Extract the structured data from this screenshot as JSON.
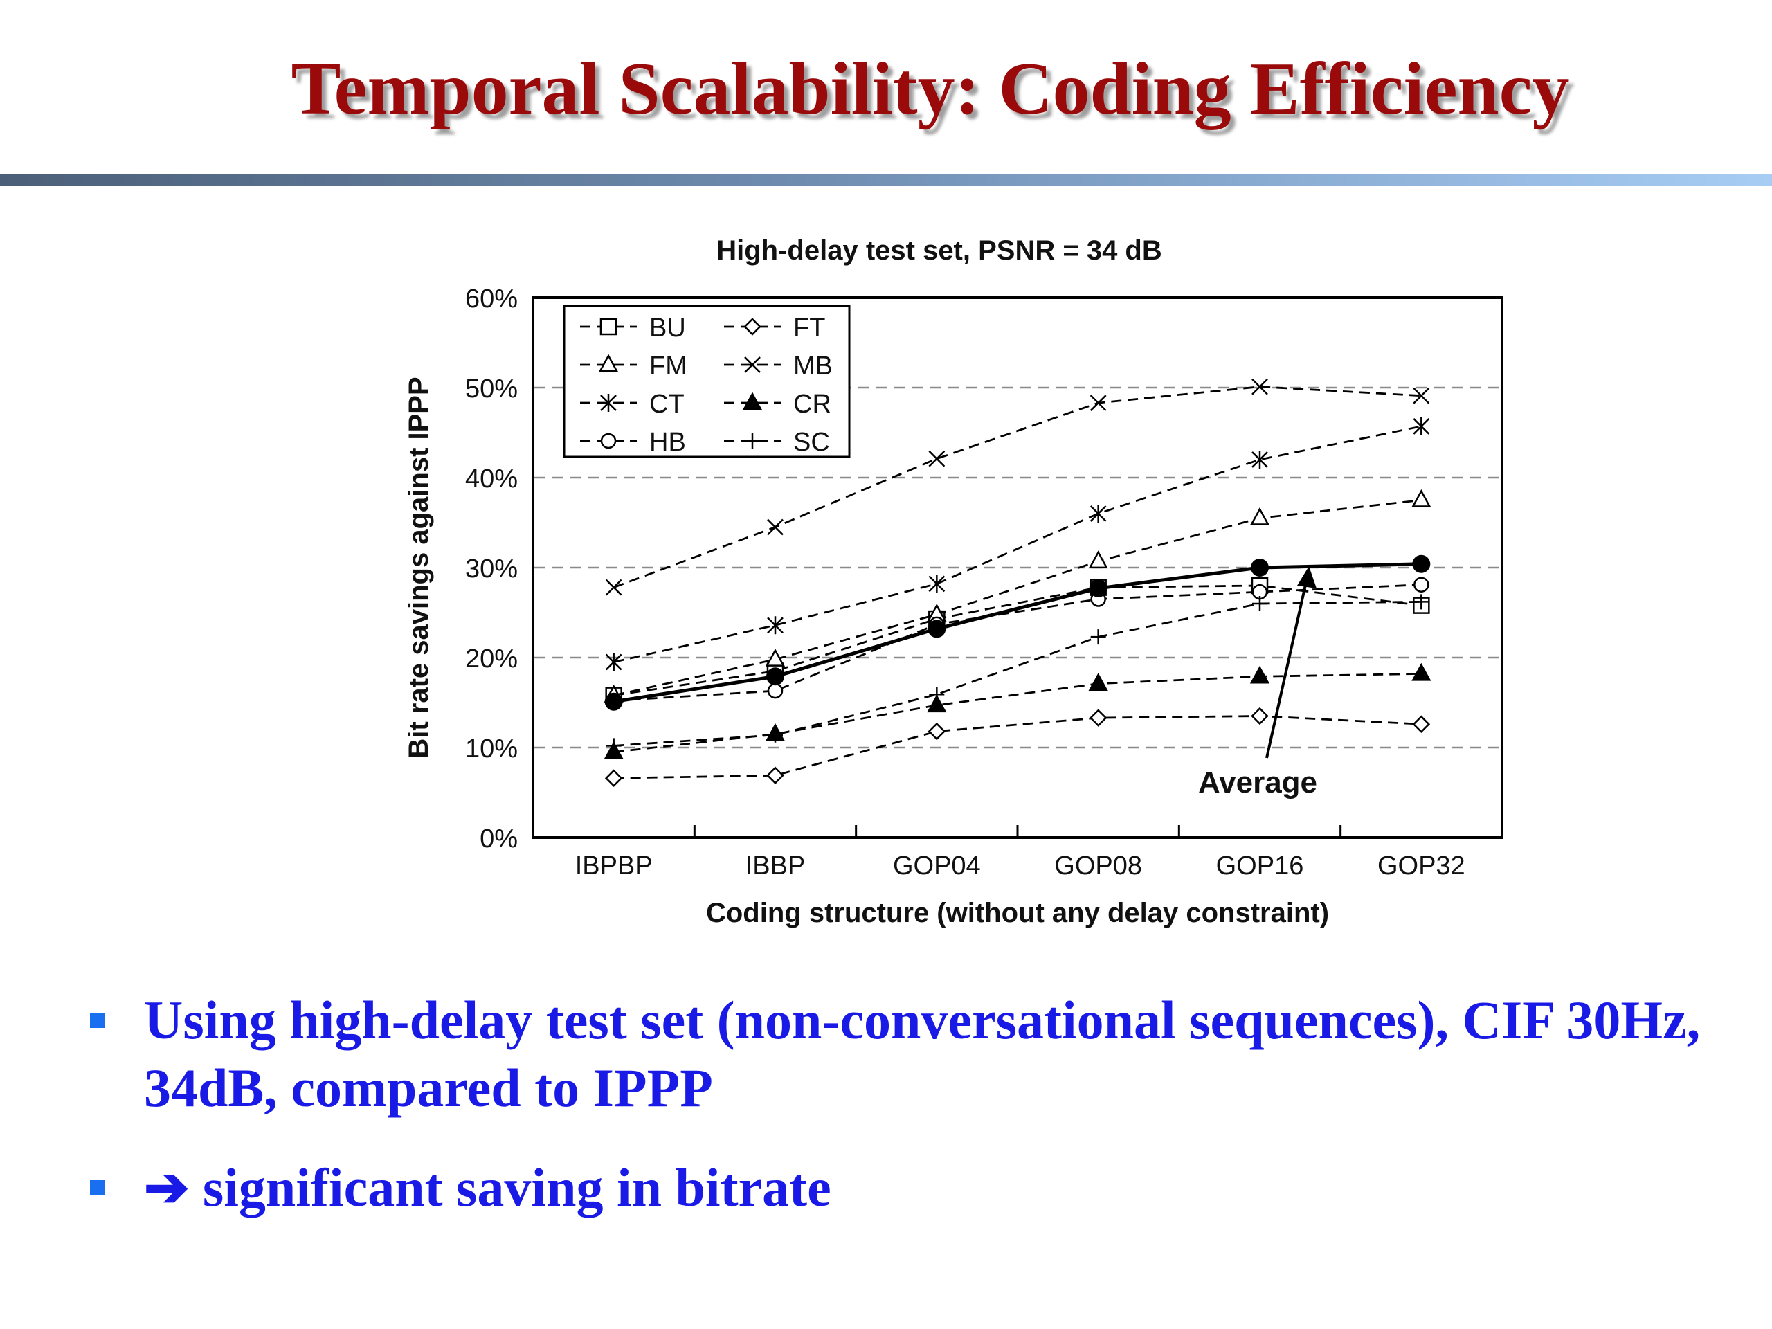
{
  "slide": {
    "title": "Temporal Scalability: Coding Efficiency",
    "bullets": [
      {
        "text": "Using high-delay test set (non-conversational sequences), CIF 30Hz, 34dB, compared to IPPP"
      },
      {
        "arrow": "➔",
        "text": "significant saving in bitrate"
      }
    ]
  },
  "chart_data": {
    "type": "line",
    "title": "High-delay test set, PSNR = 34 dB",
    "xlabel": "Coding structure (without any delay constraint)",
    "ylabel": "Bit rate savings against IPPP",
    "categories": [
      "IBPBP",
      "IBBP",
      "GOP04",
      "GOP08",
      "GOP16",
      "GOP32"
    ],
    "ylim": [
      0,
      60
    ],
    "yticks": [
      "0%",
      "10%",
      "20%",
      "30%",
      "40%",
      "50%",
      "60%"
    ],
    "grid": "horizontal dashed",
    "legend_position": "top-left",
    "series": [
      {
        "name": "BU",
        "marker": "open-square",
        "values": [
          15.8,
          18.5,
          24.3,
          27.8,
          28.0,
          25.8
        ]
      },
      {
        "name": "FM",
        "marker": "open-triangle",
        "values": [
          15.8,
          19.8,
          24.8,
          30.7,
          35.5,
          37.5
        ]
      },
      {
        "name": "CT",
        "marker": "asterisk",
        "values": [
          19.5,
          23.6,
          28.2,
          36.0,
          42.0,
          45.7
        ]
      },
      {
        "name": "HB",
        "marker": "open-circle",
        "values": [
          15.2,
          16.3,
          23.7,
          26.5,
          27.3,
          28.1
        ]
      },
      {
        "name": "FT",
        "marker": "open-diamond",
        "values": [
          6.6,
          6.9,
          11.8,
          13.3,
          13.5,
          12.6
        ]
      },
      {
        "name": "MB",
        "marker": "x",
        "values": [
          27.8,
          34.5,
          42.1,
          48.3,
          50.1,
          49.1
        ]
      },
      {
        "name": "CR",
        "marker": "filled-triangle",
        "values": [
          9.5,
          11.5,
          14.7,
          17.1,
          17.9,
          18.2
        ]
      },
      {
        "name": "SC",
        "marker": "plus",
        "values": [
          10.2,
          11.4,
          15.9,
          22.3,
          26.0,
          26.2
        ]
      },
      {
        "name": "Average",
        "marker": "filled-circle",
        "values": [
          15.1,
          17.9,
          23.2,
          27.7,
          30.0,
          30.4
        ]
      }
    ],
    "annotation": {
      "text": "Average",
      "points_to": "GOP16–GOP32 average curve"
    }
  }
}
